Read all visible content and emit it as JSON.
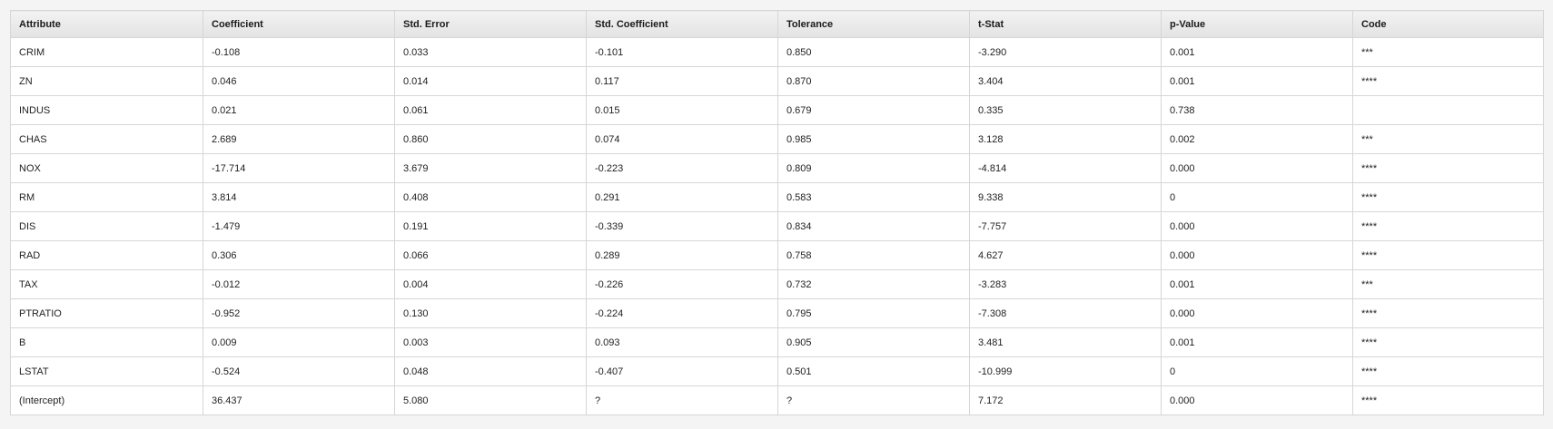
{
  "table": {
    "headers": [
      "Attribute",
      "Coefficient",
      "Std. Error",
      "Std. Coefficient",
      "Tolerance",
      "t-Stat",
      "p-Value",
      "Code"
    ],
    "rows": [
      [
        "CRIM",
        "-0.108",
        "0.033",
        "-0.101",
        "0.850",
        "-3.290",
        "0.001",
        "***"
      ],
      [
        "ZN",
        "0.046",
        "0.014",
        "0.117",
        "0.870",
        "3.404",
        "0.001",
        "****"
      ],
      [
        "INDUS",
        "0.021",
        "0.061",
        "0.015",
        "0.679",
        "0.335",
        "0.738",
        ""
      ],
      [
        "CHAS",
        "2.689",
        "0.860",
        "0.074",
        "0.985",
        "3.128",
        "0.002",
        "***"
      ],
      [
        "NOX",
        "-17.714",
        "3.679",
        "-0.223",
        "0.809",
        "-4.814",
        "0.000",
        "****"
      ],
      [
        "RM",
        "3.814",
        "0.408",
        "0.291",
        "0.583",
        "9.338",
        "0",
        "****"
      ],
      [
        "DIS",
        "-1.479",
        "0.191",
        "-0.339",
        "0.834",
        "-7.757",
        "0.000",
        "****"
      ],
      [
        "RAD",
        "0.306",
        "0.066",
        "0.289",
        "0.758",
        "4.627",
        "0.000",
        "****"
      ],
      [
        "TAX",
        "-0.012",
        "0.004",
        "-0.226",
        "0.732",
        "-3.283",
        "0.001",
        "***"
      ],
      [
        "PTRATIO",
        "-0.952",
        "0.130",
        "-0.224",
        "0.795",
        "-7.308",
        "0.000",
        "****"
      ],
      [
        "B",
        "0.009",
        "0.003",
        "0.093",
        "0.905",
        "3.481",
        "0.001",
        "****"
      ],
      [
        "LSTAT",
        "-0.524",
        "0.048",
        "-0.407",
        "0.501",
        "-10.999",
        "0",
        "****"
      ],
      [
        "(Intercept)",
        "36.437",
        "5.080",
        "?",
        "?",
        "7.172",
        "0.000",
        "****"
      ]
    ]
  }
}
